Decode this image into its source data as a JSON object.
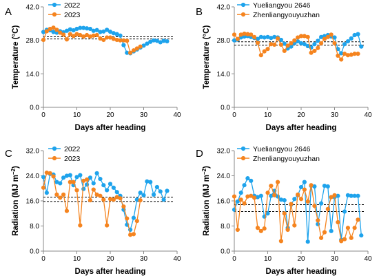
{
  "colors": {
    "blue": "#1ea3ec",
    "orange": "#f5841f"
  },
  "chart_data": [
    {
      "panel": "A",
      "type": "line",
      "xlabel": "Days after heading",
      "ylabel": "Temperature (°C)",
      "xlim": [
        0,
        40
      ],
      "xticks": [
        "0",
        "10",
        "20",
        "30",
        "40"
      ],
      "ylim": [
        0,
        42
      ],
      "yticks": [
        "0.0",
        "14.0",
        "28.0",
        "42.0"
      ],
      "reference_lines": [
        29.5,
        28.6
      ],
      "series": [
        {
          "name": "2022",
          "color": "#1ea3ec",
          "x": [
            0,
            1,
            2,
            3,
            4,
            5,
            6,
            7,
            8,
            9,
            10,
            11,
            12,
            13,
            14,
            15,
            16,
            17,
            18,
            19,
            20,
            21,
            22,
            23,
            24,
            25,
            26,
            27,
            28,
            29,
            30,
            31,
            32,
            33,
            34,
            35,
            36,
            37
          ],
          "y": [
            31.5,
            32.4,
            32.2,
            31.5,
            31.2,
            31.8,
            31.4,
            32.0,
            32.6,
            32.2,
            32.8,
            33.2,
            33.2,
            33.0,
            32.8,
            32.0,
            32.3,
            31.5,
            31.7,
            32.4,
            31.6,
            31.0,
            30.6,
            30.0,
            26.0,
            22.8,
            22.6,
            23.4,
            24.2,
            25.0,
            25.8,
            26.6,
            27.4,
            28.0,
            27.8,
            27.2,
            27.8,
            27.6
          ]
        },
        {
          "name": "2023",
          "color": "#f5841f",
          "x": [
            0,
            1,
            2,
            3,
            4,
            5,
            6,
            7,
            8,
            9,
            10,
            11,
            12,
            13,
            14,
            15,
            16,
            17,
            18,
            19,
            20,
            21,
            22,
            23,
            24,
            25,
            26,
            27,
            28,
            29
          ],
          "y": [
            28.2,
            31.8,
            32.8,
            33.3,
            32.4,
            31.2,
            30.4,
            28.4,
            30.6,
            29.8,
            30.6,
            30.2,
            29.6,
            30.2,
            29.6,
            30.0,
            30.2,
            28.8,
            28.2,
            29.2,
            29.2,
            28.6,
            28.2,
            28.0,
            28.0,
            27.8,
            22.8,
            23.8,
            24.6,
            25.4
          ]
        }
      ]
    },
    {
      "panel": "B",
      "type": "line",
      "xlabel": "Days after heading",
      "ylabel": "Temperature (°C)",
      "xlim": [
        0,
        40
      ],
      "xticks": [
        "0",
        "10",
        "20",
        "30",
        "40"
      ],
      "ylim": [
        0,
        42
      ],
      "yticks": [
        "0.0",
        "14.0",
        "28.0",
        "42.0"
      ],
      "reference_lines": [
        27.4,
        26.0
      ],
      "series": [
        {
          "name": "Yueliangyou 2646",
          "color": "#1ea3ec",
          "x": [
            0,
            1,
            2,
            3,
            4,
            5,
            6,
            7,
            8,
            9,
            10,
            11,
            12,
            13,
            14,
            15,
            16,
            17,
            18,
            19,
            20,
            21,
            22,
            23,
            24,
            25,
            26,
            27,
            28,
            29,
            30,
            31,
            32,
            33,
            34,
            35,
            36,
            37,
            38
          ],
          "y": [
            28.0,
            28.3,
            29.2,
            29.6,
            29.8,
            29.4,
            29.0,
            28.6,
            29.4,
            29.2,
            29.4,
            29.0,
            29.4,
            29.2,
            28.2,
            26.6,
            24.6,
            25.4,
            26.8,
            27.6,
            26.8,
            26.4,
            25.6,
            25.0,
            26.4,
            27.8,
            29.4,
            29.8,
            30.2,
            29.6,
            29.2,
            24.4,
            22.6,
            26.4,
            27.6,
            28.8,
            30.2,
            30.6,
            25.4
          ]
        },
        {
          "name": "Zhenliangyouyuzhan",
          "color": "#f5841f",
          "x": [
            0,
            1,
            2,
            3,
            4,
            5,
            6,
            7,
            8,
            9,
            10,
            11,
            12,
            13,
            14,
            15,
            16,
            17,
            18,
            19,
            20,
            21,
            22,
            23,
            24,
            25,
            26,
            27,
            28,
            29,
            30,
            31,
            32,
            33,
            34,
            35,
            36,
            37
          ],
          "y": [
            30.4,
            28.6,
            30.4,
            30.8,
            30.6,
            30.4,
            29.4,
            27.0,
            21.8,
            23.4,
            24.4,
            26.4,
            26.2,
            28.8,
            26.2,
            23.6,
            25.8,
            26.8,
            28.0,
            29.2,
            29.8,
            29.8,
            29.4,
            22.8,
            23.6,
            24.8,
            26.8,
            28.6,
            29.4,
            30.4,
            26.8,
            21.6,
            20.0,
            22.4,
            21.8,
            22.0,
            22.4,
            22.4
          ]
        }
      ]
    },
    {
      "panel": "C",
      "type": "line",
      "xlabel": "Days after heading",
      "ylabel": "Radiation (MJ m⁻²)",
      "xlim": [
        0,
        40
      ],
      "xticks": [
        "0",
        "10",
        "20",
        "30",
        "40"
      ],
      "ylim": [
        0,
        32
      ],
      "yticks": [
        "0.0",
        "8.0",
        "16.0",
        "24.0",
        "32.0"
      ],
      "reference_lines": [
        17.2,
        15.8
      ],
      "series": [
        {
          "name": "2022",
          "color": "#1ea3ec",
          "x": [
            0,
            1,
            2,
            3,
            4,
            5,
            6,
            7,
            8,
            9,
            10,
            11,
            12,
            13,
            14,
            15,
            16,
            17,
            18,
            19,
            20,
            21,
            22,
            23,
            24,
            25,
            26,
            27,
            28,
            29,
            30,
            31,
            32,
            33,
            34,
            35,
            36,
            37
          ],
          "y": [
            23.6,
            18.6,
            24.6,
            24.4,
            22.0,
            21.6,
            23.4,
            24.0,
            24.2,
            21.0,
            23.6,
            24.2,
            19.8,
            21.2,
            23.4,
            21.6,
            24.8,
            23.0,
            21.0,
            19.4,
            21.4,
            20.2,
            18.8,
            17.6,
            13.2,
            8.4,
            6.8,
            10.6,
            16.4,
            18.6,
            17.8,
            22.2,
            22.0,
            18.0,
            20.4,
            19.0,
            16.4,
            19.2
          ]
        },
        {
          "name": "2023",
          "color": "#f5841f",
          "x": [
            0,
            1,
            2,
            3,
            4,
            5,
            6,
            7,
            8,
            9,
            10,
            11,
            12,
            13,
            14,
            15,
            16,
            17,
            18,
            19,
            20,
            21,
            22,
            23,
            24,
            25,
            26,
            27,
            28,
            29
          ],
          "y": [
            20.2,
            25.0,
            24.8,
            23.8,
            18.0,
            17.0,
            18.0,
            12.8,
            22.0,
            22.0,
            19.4,
            8.2,
            22.4,
            22.8,
            16.2,
            19.6,
            18.0,
            17.6,
            16.4,
            8.2,
            16.6,
            16.4,
            17.2,
            16.8,
            14.2,
            10.4,
            5.2,
            5.4,
            9.6,
            16.2
          ]
        }
      ]
    },
    {
      "panel": "D",
      "type": "line",
      "xlabel": "Days after heading",
      "ylabel": "Radiation (MJ m⁻²)",
      "xlim": [
        0,
        40
      ],
      "xticks": [
        "0",
        "10",
        "20",
        "30",
        "40"
      ],
      "ylim": [
        0,
        32
      ],
      "yticks": [
        "0.0",
        "8.0",
        "16.0",
        "24.0",
        "32.0"
      ],
      "reference_lines": [
        14.8,
        12.6
      ],
      "series": [
        {
          "name": "Yueliangyou 2646",
          "color": "#1ea3ec",
          "x": [
            0,
            1,
            2,
            3,
            4,
            5,
            6,
            7,
            8,
            9,
            10,
            11,
            12,
            13,
            14,
            15,
            16,
            17,
            18,
            19,
            20,
            21,
            22,
            23,
            24,
            25,
            26,
            27,
            28,
            29,
            30,
            31,
            32,
            33,
            34,
            35,
            36,
            37,
            38
          ],
          "y": [
            13.2,
            15.8,
            18.6,
            21.0,
            23.2,
            22.4,
            17.6,
            17.2,
            17.6,
            11.0,
            12.0,
            17.6,
            19.2,
            17.4,
            16.4,
            16.2,
            7.4,
            14.8,
            16.6,
            17.8,
            20.4,
            22.0,
            3.0,
            20.8,
            20.6,
            8.6,
            15.2,
            20.8,
            20.6,
            6.4,
            17.2,
            17.6,
            3.6,
            12.6,
            17.8,
            17.6,
            17.6,
            17.6,
            5.0
          ]
        },
        {
          "name": "Zhenliangyouyuzhan",
          "color": "#f5841f",
          "x": [
            0,
            1,
            2,
            3,
            4,
            5,
            6,
            7,
            8,
            9,
            10,
            11,
            12,
            13,
            14,
            15,
            16,
            17,
            18,
            19,
            20,
            21,
            22,
            23,
            24,
            25,
            26,
            27,
            28,
            29,
            30,
            31,
            32,
            33,
            34,
            35,
            36,
            37
          ],
          "y": [
            17.4,
            6.8,
            16.4,
            15.2,
            17.4,
            17.6,
            17.0,
            7.4,
            6.4,
            7.2,
            18.6,
            20.8,
            17.8,
            22.0,
            3.2,
            12.0,
            6.8,
            15.0,
            8.2,
            18.0,
            16.6,
            19.6,
            15.8,
            21.0,
            14.4,
            9.8,
            4.2,
            6.0,
            13.4,
            17.2,
            17.8,
            9.2,
            3.2,
            3.8,
            7.4,
            4.2,
            7.4,
            10.0
          ]
        }
      ]
    }
  ]
}
